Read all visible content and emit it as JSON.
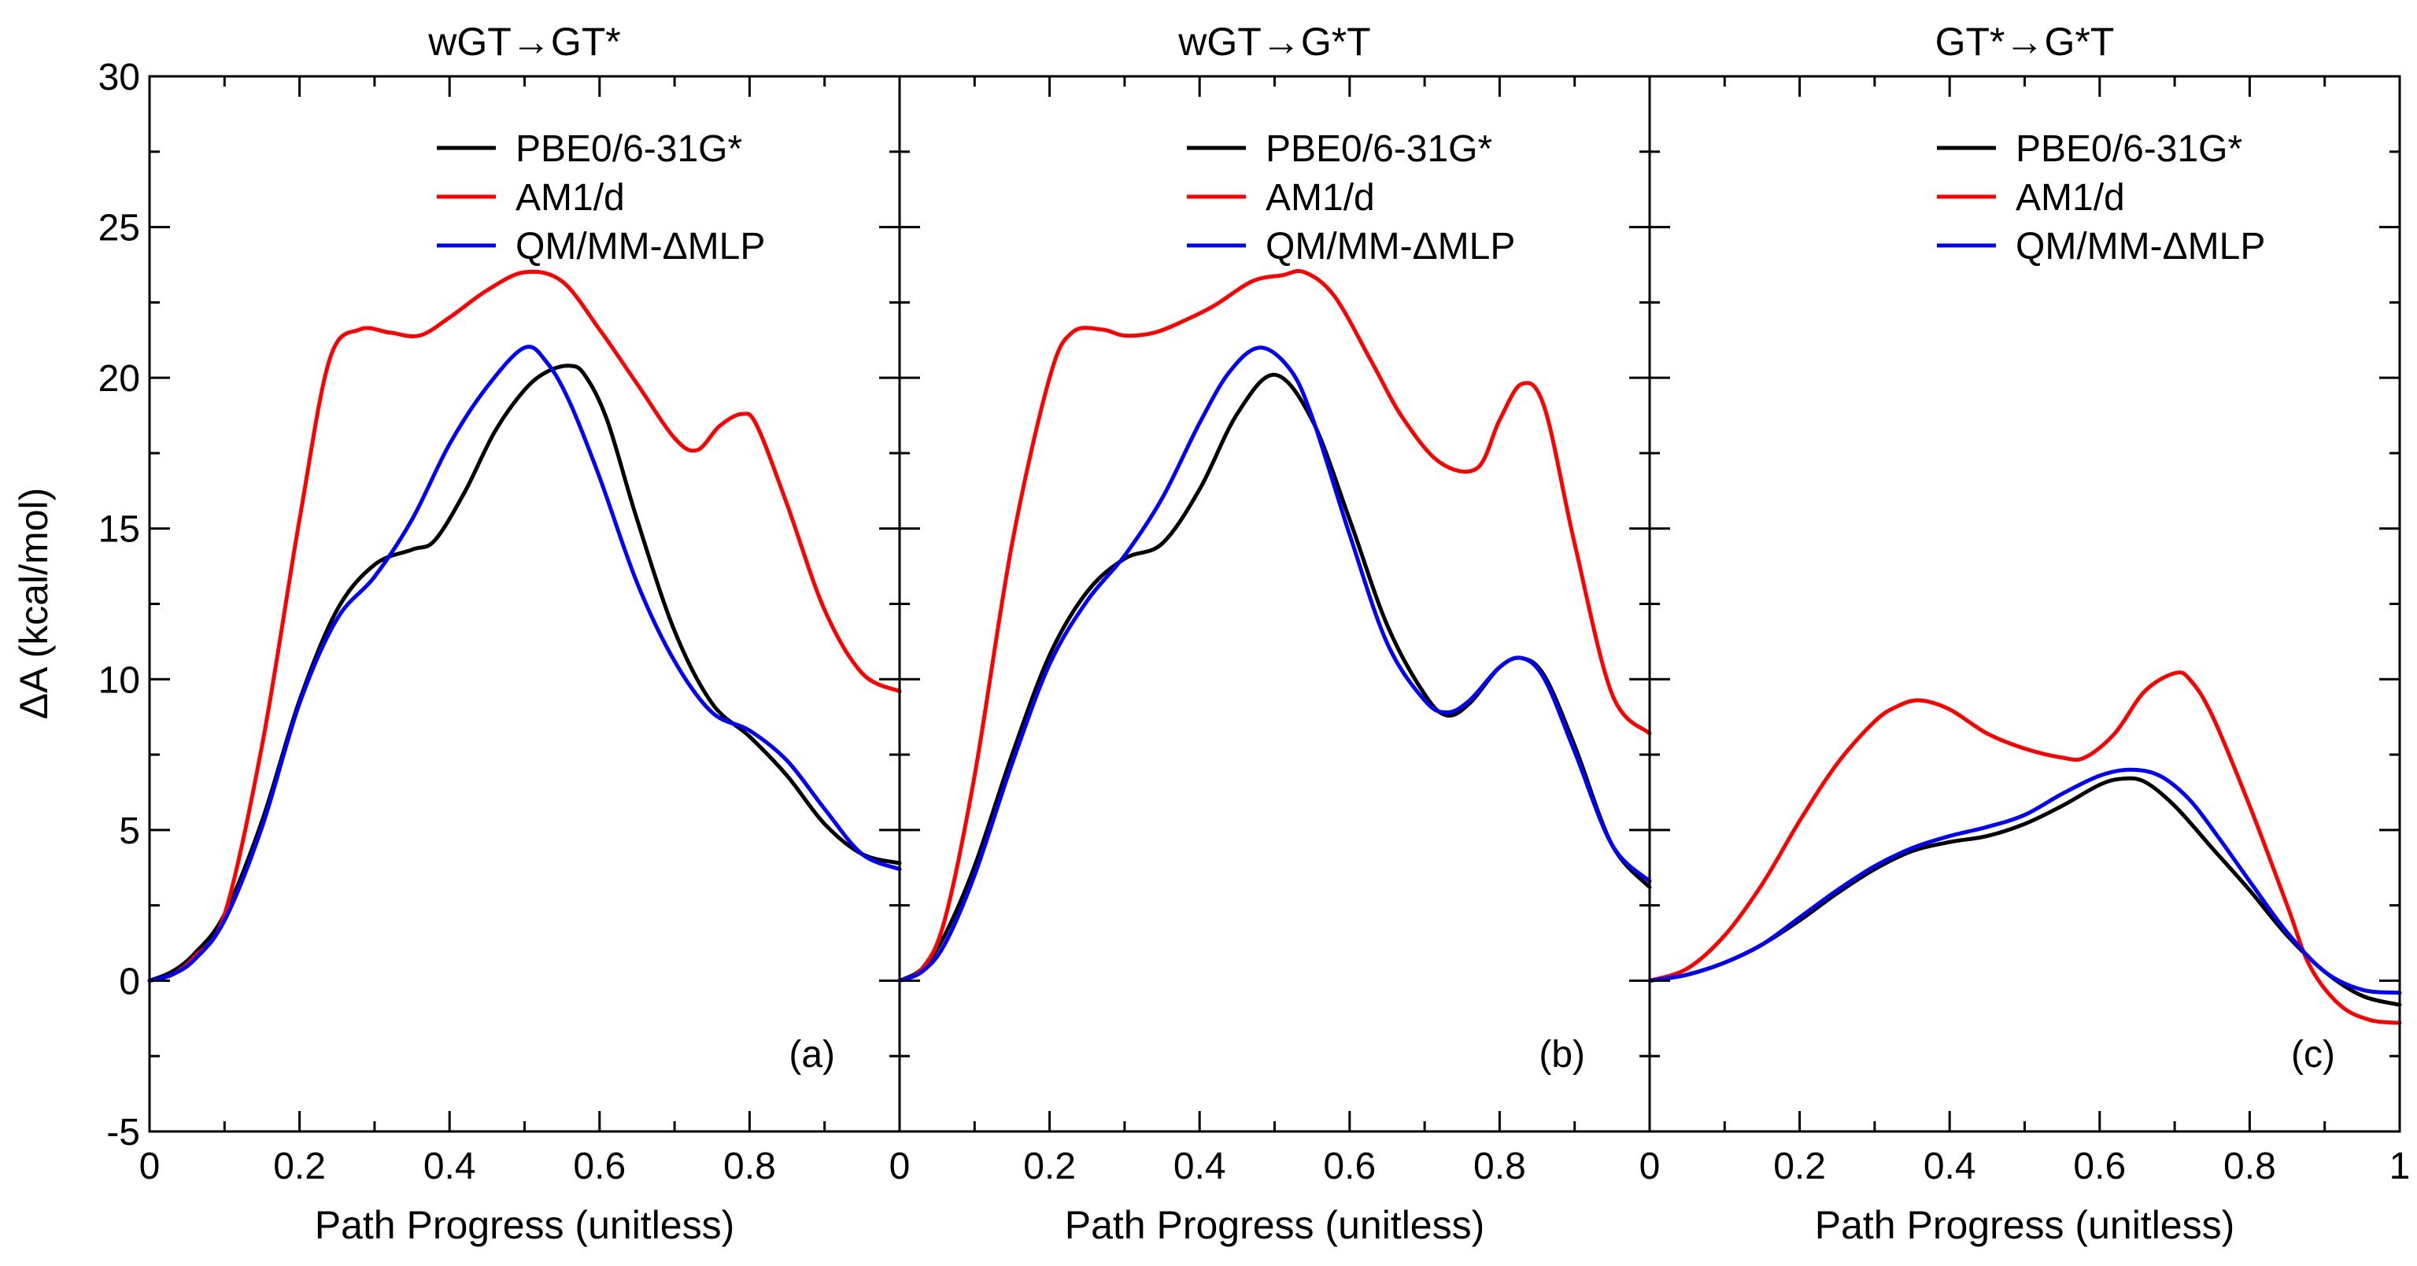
{
  "figure": {
    "ylabel": "ΔA (kcal/mol)",
    "colors": {
      "axis": "#000000",
      "background": "#ffffff"
    }
  },
  "chart_data": [
    {
      "type": "line",
      "title": "wGT→GT*",
      "panel_label": "(a)",
      "xlabel": "Path Progress (unitless)",
      "ylabel": "ΔA (kcal/mol)",
      "xlim": [
        0,
        1
      ],
      "ylim": [
        -5,
        30
      ],
      "xticks": [
        0,
        0.2,
        0.4,
        0.6,
        0.8
      ],
      "xtick_labels": [
        "0",
        "0.2",
        "0.4",
        "0.6",
        "0.8"
      ],
      "yticks": [
        -5,
        0,
        5,
        10,
        15,
        20,
        25,
        30
      ],
      "ytick_labels": [
        "-5",
        "0",
        "5",
        "10",
        "15",
        "20",
        "25",
        "30"
      ],
      "legend_position": "top-right",
      "series": [
        {
          "name": "PBE0/6-31G*",
          "color": "#000000",
          "x": [
            0,
            0.03,
            0.06,
            0.1,
            0.15,
            0.2,
            0.25,
            0.3,
            0.35,
            0.38,
            0.42,
            0.46,
            0.5,
            0.53,
            0.56,
            0.58,
            0.61,
            0.65,
            0.7,
            0.75,
            0.8,
            0.85,
            0.9,
            0.95,
            1.0
          ],
          "y": [
            0,
            0.3,
            0.9,
            2.2,
            5.3,
            9.3,
            12.3,
            13.8,
            14.3,
            14.6,
            16.2,
            18.2,
            19.6,
            20.2,
            20.4,
            20.1,
            18.6,
            15.3,
            11.6,
            9.2,
            8.1,
            6.8,
            5.2,
            4.2,
            3.9
          ]
        },
        {
          "name": "AM1/d",
          "color": "#ff0000",
          "x": [
            0,
            0.03,
            0.06,
            0.1,
            0.15,
            0.2,
            0.24,
            0.28,
            0.32,
            0.36,
            0.4,
            0.45,
            0.5,
            0.55,
            0.6,
            0.65,
            0.7,
            0.73,
            0.76,
            0.79,
            0.81,
            0.85,
            0.9,
            0.95,
            1.0
          ],
          "y": [
            0,
            0.2,
            0.8,
            2.2,
            7.8,
            15.3,
            20.6,
            21.6,
            21.5,
            21.4,
            22.0,
            22.9,
            23.5,
            23.2,
            21.6,
            19.8,
            18.0,
            17.6,
            18.4,
            18.8,
            18.4,
            15.8,
            12.3,
            10.2,
            9.6
          ]
        },
        {
          "name": "QM/MM-ΔMLP",
          "color": "#0000ff",
          "x": [
            0,
            0.03,
            0.06,
            0.1,
            0.15,
            0.2,
            0.25,
            0.3,
            0.35,
            0.4,
            0.45,
            0.5,
            0.53,
            0.56,
            0.6,
            0.65,
            0.7,
            0.75,
            0.8,
            0.85,
            0.9,
            0.95,
            1.0
          ],
          "y": [
            0,
            0.2,
            0.7,
            2.0,
            5.1,
            9.2,
            12.0,
            13.4,
            15.3,
            17.8,
            19.7,
            21.0,
            20.5,
            19.2,
            16.7,
            13.2,
            10.6,
            8.9,
            8.3,
            7.3,
            5.7,
            4.2,
            3.7
          ]
        }
      ]
    },
    {
      "type": "line",
      "title": "wGT→G*T",
      "panel_label": "(b)",
      "xlabel": "Path Progress (unitless)",
      "xlim": [
        0,
        1
      ],
      "ylim": [
        -5,
        30
      ],
      "xticks": [
        0,
        0.2,
        0.4,
        0.6,
        0.8
      ],
      "xtick_labels": [
        "0",
        "0.2",
        "0.4",
        "0.6",
        "0.8"
      ],
      "legend_position": "top-right",
      "series": [
        {
          "name": "PBE0/6-31G*",
          "color": "#000000",
          "x": [
            0,
            0.03,
            0.06,
            0.1,
            0.15,
            0.2,
            0.25,
            0.3,
            0.35,
            0.4,
            0.45,
            0.5,
            0.55,
            0.6,
            0.65,
            0.7,
            0.73,
            0.76,
            0.8,
            0.83,
            0.86,
            0.9,
            0.95,
            1.0
          ],
          "y": [
            0,
            0.4,
            1.5,
            3.8,
            7.5,
            10.8,
            12.9,
            14.0,
            14.5,
            16.3,
            18.8,
            20.1,
            18.6,
            15.3,
            11.8,
            9.5,
            8.8,
            9.2,
            10.4,
            10.7,
            10.1,
            7.8,
            4.5,
            3.1
          ]
        },
        {
          "name": "AM1/d",
          "color": "#ff0000",
          "x": [
            0,
            0.03,
            0.06,
            0.1,
            0.15,
            0.2,
            0.23,
            0.27,
            0.3,
            0.34,
            0.38,
            0.42,
            0.47,
            0.51,
            0.54,
            0.58,
            0.63,
            0.67,
            0.72,
            0.77,
            0.8,
            0.83,
            0.86,
            0.9,
            0.95,
            1.0
          ],
          "y": [
            0,
            0.4,
            2.0,
            6.8,
            14.5,
            20.0,
            21.5,
            21.6,
            21.4,
            21.5,
            21.9,
            22.4,
            23.2,
            23.4,
            23.5,
            22.7,
            20.5,
            18.7,
            17.2,
            17.0,
            18.6,
            19.8,
            19.0,
            14.5,
            9.5,
            8.2
          ]
        },
        {
          "name": "QM/MM-ΔMLP",
          "color": "#0000ff",
          "x": [
            0,
            0.03,
            0.06,
            0.1,
            0.15,
            0.2,
            0.25,
            0.3,
            0.35,
            0.4,
            0.44,
            0.48,
            0.52,
            0.55,
            0.6,
            0.65,
            0.7,
            0.73,
            0.76,
            0.8,
            0.83,
            0.86,
            0.9,
            0.95,
            1.0
          ],
          "y": [
            0,
            0.3,
            1.2,
            3.5,
            7.2,
            10.5,
            12.6,
            14.1,
            16.0,
            18.5,
            20.2,
            21.0,
            20.3,
            18.7,
            14.8,
            11.2,
            9.3,
            8.9,
            9.3,
            10.4,
            10.7,
            10.0,
            7.6,
            4.5,
            3.3
          ]
        }
      ]
    },
    {
      "type": "line",
      "title": "GT*→G*T",
      "panel_label": "(c)",
      "xlabel": "Path Progress (unitless)",
      "xlim": [
        0,
        1
      ],
      "ylim": [
        -5,
        30
      ],
      "xticks": [
        0,
        0.2,
        0.4,
        0.6,
        0.8,
        1
      ],
      "xtick_labels": [
        "0",
        "0.2",
        "0.4",
        "0.6",
        "0.8",
        "1"
      ],
      "legend_position": "top-right",
      "series": [
        {
          "name": "PBE0/6-31G*",
          "color": "#000000",
          "x": [
            0,
            0.05,
            0.1,
            0.15,
            0.2,
            0.25,
            0.3,
            0.35,
            0.4,
            0.45,
            0.5,
            0.55,
            0.6,
            0.63,
            0.66,
            0.7,
            0.75,
            0.8,
            0.85,
            0.9,
            0.95,
            1.0
          ],
          "y": [
            0,
            0.2,
            0.6,
            1.2,
            2.0,
            2.9,
            3.7,
            4.3,
            4.6,
            4.8,
            5.2,
            5.8,
            6.5,
            6.7,
            6.6,
            5.8,
            4.4,
            3.0,
            1.5,
            0.3,
            -0.5,
            -0.8
          ]
        },
        {
          "name": "AM1/d",
          "color": "#ff0000",
          "x": [
            0,
            0.05,
            0.1,
            0.15,
            0.2,
            0.25,
            0.3,
            0.33,
            0.36,
            0.4,
            0.45,
            0.5,
            0.55,
            0.58,
            0.62,
            0.66,
            0.7,
            0.72,
            0.75,
            0.8,
            0.85,
            0.88,
            0.92,
            0.96,
            1.0
          ],
          "y": [
            0,
            0.4,
            1.5,
            3.2,
            5.3,
            7.2,
            8.6,
            9.1,
            9.3,
            9.0,
            8.2,
            7.7,
            7.4,
            7.4,
            8.2,
            9.6,
            10.2,
            10.0,
            8.8,
            5.8,
            2.5,
            0.5,
            -0.8,
            -1.3,
            -1.4
          ]
        },
        {
          "name": "QM/MM-ΔMLP",
          "color": "#0000ff",
          "x": [
            0,
            0.05,
            0.1,
            0.15,
            0.2,
            0.25,
            0.3,
            0.35,
            0.4,
            0.45,
            0.5,
            0.55,
            0.6,
            0.64,
            0.68,
            0.72,
            0.76,
            0.8,
            0.85,
            0.9,
            0.95,
            1.0
          ],
          "y": [
            0,
            0.2,
            0.6,
            1.2,
            2.1,
            3.0,
            3.8,
            4.4,
            4.8,
            5.1,
            5.5,
            6.2,
            6.8,
            7.0,
            6.8,
            6.0,
            4.7,
            3.3,
            1.6,
            0.3,
            -0.3,
            -0.4
          ]
        }
      ]
    }
  ]
}
